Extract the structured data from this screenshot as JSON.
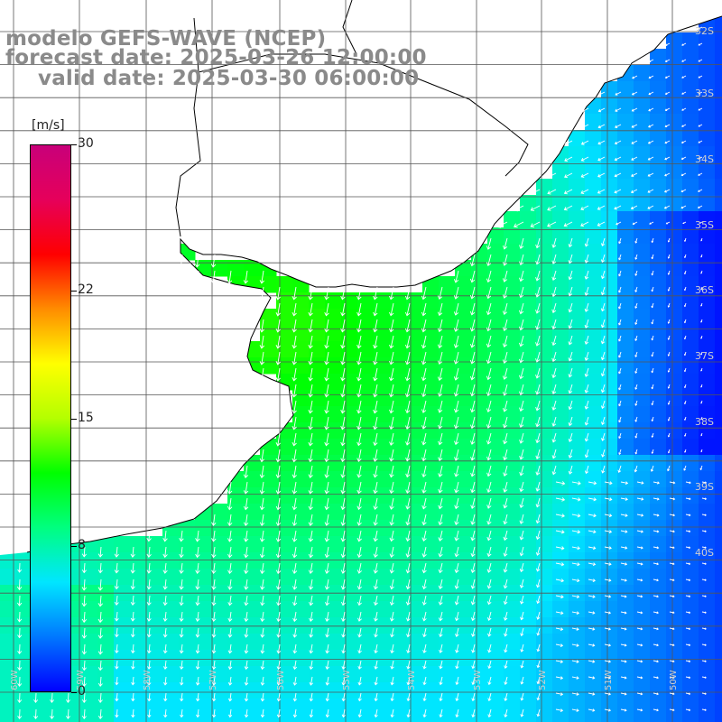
{
  "title": {
    "line1": "modelo GEFS-WAVE (NCEP)",
    "line2": "forecast date: 2025-03-26 12:00:00",
    "line3": "valid date: 2025-03-30 06:00:00"
  },
  "colorbar": {
    "units": "[m/s]",
    "min": 0,
    "max": 30,
    "ticks": [
      {
        "value": 30,
        "label": "30"
      },
      {
        "value": 22,
        "label": "22"
      },
      {
        "value": 15,
        "label": "15"
      },
      {
        "value": 8,
        "label": "8"
      },
      {
        "value": 0,
        "label": "0"
      }
    ],
    "stops": [
      "#0000ff",
      "#0078ff",
      "#00e6ff",
      "#00ff7f",
      "#00ff00",
      "#b4ff00",
      "#ffff00",
      "#ff8c00",
      "#ff0000",
      "#e6005a",
      "#c8007a"
    ]
  },
  "grid": {
    "lat_labels": [
      "32S",
      "33S",
      "34S",
      "35S",
      "36S",
      "37S",
      "38S",
      "39S",
      "40S"
    ],
    "lon_labels": [
      "60W",
      "59W",
      "58W",
      "57W",
      "56W",
      "55W",
      "54W",
      "53W",
      "52W",
      "51W",
      "50W"
    ]
  },
  "field": {
    "variable": "wind speed",
    "units": "m/s"
  }
}
